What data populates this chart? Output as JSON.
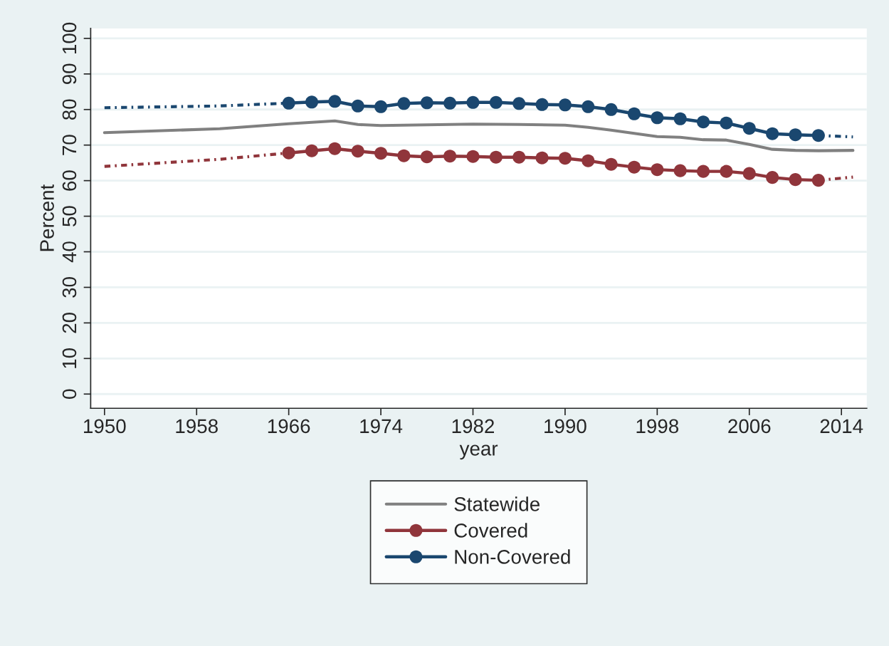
{
  "chart_data": {
    "type": "line",
    "xlabel": "year",
    "ylabel": "Percent",
    "xlim": [
      1948.8,
      2016.2
    ],
    "ylim": [
      -4,
      102.8
    ],
    "xticks": [
      1950,
      1958,
      1966,
      1974,
      1982,
      1990,
      1998,
      2006,
      2014
    ],
    "yticks": [
      0,
      10,
      20,
      30,
      40,
      50,
      60,
      70,
      80,
      90,
      100
    ],
    "grid": "y",
    "legend": "bottom",
    "series": [
      {
        "name": "Statewide",
        "color": "#808080",
        "marker": "none",
        "line_style": "solid",
        "x": [
          1950,
          1960,
          1966,
          1970,
          1972,
          1974,
          1978,
          1982,
          1986,
          1990,
          1992,
          1994,
          1996,
          1998,
          2000,
          2002,
          2004,
          2006,
          2008,
          2010,
          2012,
          2015
        ],
        "values": [
          73.5,
          74.6,
          76.0,
          76.8,
          75.8,
          75.5,
          75.7,
          75.9,
          75.8,
          75.6,
          75.0,
          74.2,
          73.3,
          72.4,
          72.2,
          71.5,
          71.4,
          70.2,
          68.8,
          68.5,
          68.4,
          68.5
        ]
      },
      {
        "name": "Covered",
        "color": "#90353b",
        "marker": "circle",
        "line_style": "solid",
        "x": [
          1966,
          1968,
          1970,
          1972,
          1974,
          1976,
          1978,
          1980,
          1982,
          1984,
          1986,
          1988,
          1990,
          1992,
          1994,
          1996,
          1998,
          2000,
          2002,
          2004,
          2006,
          2008,
          2010,
          2012
        ],
        "values": [
          67.8,
          68.4,
          69.0,
          68.3,
          67.7,
          67.0,
          66.7,
          66.9,
          66.8,
          66.6,
          66.6,
          66.4,
          66.3,
          65.6,
          64.6,
          63.8,
          63.1,
          62.8,
          62.6,
          62.6,
          62.0,
          60.9,
          60.3,
          60.1
        ]
      },
      {
        "name": "Non-Covered",
        "color": "#1a476f",
        "marker": "circle",
        "line_style": "solid",
        "x": [
          1966,
          1968,
          1970,
          1972,
          1974,
          1976,
          1978,
          1980,
          1982,
          1984,
          1986,
          1988,
          1990,
          1992,
          1994,
          1996,
          1998,
          2000,
          2002,
          2004,
          2006,
          2008,
          2010,
          2012
        ],
        "values": [
          81.8,
          82.1,
          82.3,
          81.0,
          80.8,
          81.7,
          81.9,
          81.8,
          82.0,
          82.0,
          81.7,
          81.4,
          81.3,
          80.8,
          80.0,
          78.8,
          77.7,
          77.4,
          76.5,
          76.2,
          74.7,
          73.2,
          72.9,
          72.7
        ]
      },
      {
        "color": "#90353b",
        "marker": "none",
        "line_style": "dotted",
        "x": [
          1950,
          1960,
          1966
        ],
        "values": [
          64.0,
          66.0,
          67.8
        ]
      },
      {
        "color": "#90353b",
        "marker": "none",
        "line_style": "dotted",
        "x": [
          2012,
          2015
        ],
        "values": [
          60.1,
          61.0
        ]
      },
      {
        "color": "#1a476f",
        "marker": "none",
        "line_style": "dotted",
        "x": [
          1950,
          1960,
          1966
        ],
        "values": [
          80.5,
          81.0,
          81.8
        ]
      },
      {
        "color": "#1a476f",
        "marker": "none",
        "line_style": "dotted",
        "x": [
          2012,
          2015
        ],
        "values": [
          72.7,
          72.3
        ]
      }
    ]
  }
}
